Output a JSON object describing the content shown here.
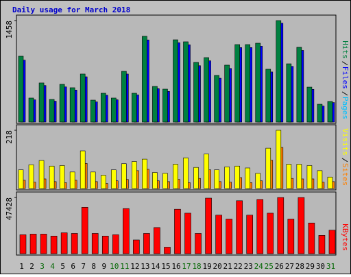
{
  "chart_data": [
    {
      "type": "bar",
      "title": "Daily usage for March 2018",
      "categories": [
        "1",
        "2",
        "3",
        "4",
        "5",
        "6",
        "7",
        "8",
        "9",
        "10",
        "11",
        "12",
        "13",
        "14",
        "15",
        "16",
        "17",
        "18",
        "19",
        "20",
        "21",
        "22",
        "23",
        "24",
        "25",
        "26",
        "27",
        "28",
        "29",
        "30",
        "31"
      ],
      "category_colors": [
        "#000",
        "#000",
        "#006600",
        "#006600",
        "#000",
        "#000",
        "#000",
        "#000",
        "#000",
        "#006600",
        "#006600",
        "#000",
        "#000",
        "#000",
        "#000",
        "#000",
        "#006600",
        "#006600",
        "#000",
        "#000",
        "#000",
        "#000",
        "#000",
        "#006600",
        "#006600",
        "#000",
        "#000",
        "#000",
        "#000",
        "#000",
        "#006600"
      ],
      "ylim": [
        0,
        1458
      ],
      "yticks": [
        1458
      ],
      "series": [
        {
          "name": "Pages",
          "color": "#00c0ff",
          "values": [
            0,
            0,
            0,
            0,
            0,
            0,
            0,
            0,
            0,
            0,
            0,
            0,
            0,
            0,
            0,
            0,
            0,
            0,
            0,
            0,
            0,
            0,
            0,
            0,
            0,
            0,
            0,
            0,
            0,
            0,
            0
          ]
        },
        {
          "name": "Files",
          "color": "#0000ff",
          "values": [
            890,
            320,
            525,
            300,
            505,
            460,
            650,
            290,
            385,
            320,
            690,
            390,
            1180,
            480,
            440,
            1140,
            1110,
            810,
            880,
            630,
            770,
            1070,
            1070,
            1090,
            720,
            1420,
            800,
            1030,
            470,
            230,
            280
          ]
        },
        {
          "name": "Hits",
          "color": "#008040",
          "values": [
            946,
            345,
            562,
            325,
            542,
            493,
            690,
            315,
            414,
            345,
            729,
            414,
            1232,
            512,
            473,
            1182,
            1153,
            857,
            926,
            670,
            818,
            1113,
            1113,
            1133,
            759,
            1458,
            837,
            1074,
            502,
            256,
            296
          ]
        }
      ]
    },
    {
      "type": "bar",
      "ylim": [
        0,
        218
      ],
      "yticks": [
        218
      ],
      "series": [
        {
          "name": "Sites",
          "color": "#ff8000",
          "values": [
            31,
            24,
            36,
            26,
            22,
            31,
            94,
            26,
            19,
            29,
            34,
            67,
            72,
            29,
            26,
            34,
            22,
            38,
            70,
            26,
            24,
            41,
            22,
            29,
            106,
            154,
            38,
            36,
            36,
            24,
            26
          ]
        },
        {
          "name": "Visits",
          "color": "#ffff00",
          "values": [
            70,
            89,
            105,
            84,
            86,
            62,
            141,
            62,
            50,
            70,
            93,
            101,
            110,
            60,
            57,
            91,
            115,
            79,
            129,
            70,
            81,
            84,
            77,
            57,
            151,
            218,
            91,
            91,
            86,
            67,
            43
          ]
        }
      ]
    },
    {
      "type": "bar",
      "ylim": [
        0,
        47428
      ],
      "yticks": [
        47428
      ],
      "series": [
        {
          "name": "KBytes",
          "color": "#ff0000",
          "values": [
            15990,
            16540,
            16540,
            14880,
            17640,
            17090,
            39140,
            17090,
            14880,
            15990,
            38040,
            11580,
            17090,
            22050,
            5510,
            37490,
            34180,
            17090,
            46860,
            32530,
            29220,
            44660,
            32530,
            45760,
            34180,
            47428,
            29220,
            47428,
            25910,
            15440,
            19850
          ]
        }
      ]
    }
  ]
}
